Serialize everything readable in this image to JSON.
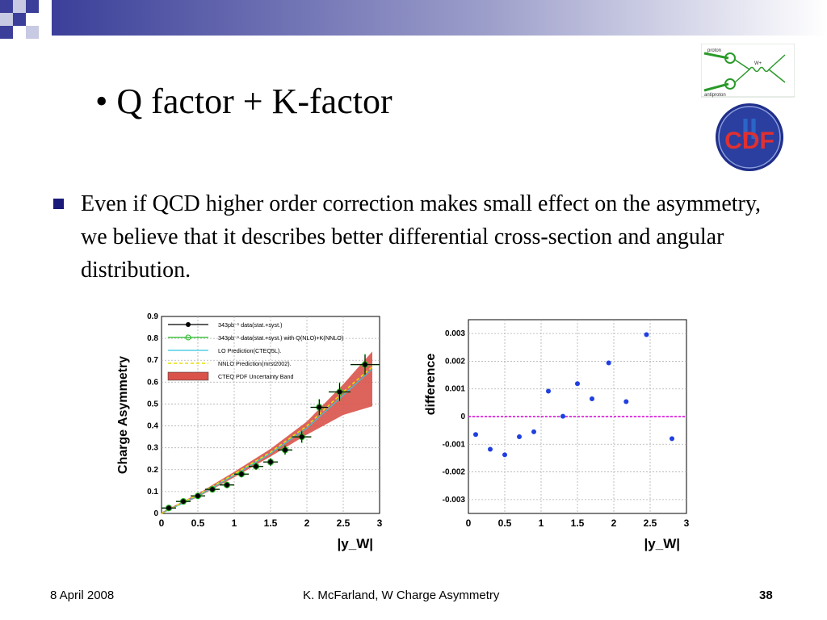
{
  "slide": {
    "title": "• Q factor + K-factor",
    "bullet": "Even if QCD higher order correction makes small effect on the asymmetry, we believe that it describes better differential cross-section and angular distribution.",
    "footer_date": "8 April 2008",
    "footer_center": "K. McFarland, W Charge Asymmetry",
    "page_number": "38",
    "logo_text": "CDF",
    "logo_roman": "II",
    "diagram_labels": [
      "proton",
      "antiproton",
      "W+"
    ],
    "accent_color": "#3b3f99",
    "bullet_color": "#1a1a7a"
  },
  "chart_data": [
    {
      "type": "scatter",
      "title": "",
      "xlabel": "|y_W|",
      "ylabel": "Charge Asymmetry",
      "xlim": [
        0,
        3
      ],
      "ylim": [
        0,
        0.9
      ],
      "xticks": [
        "0",
        "0.5",
        "1",
        "1.5",
        "2",
        "2.5",
        "3"
      ],
      "yticks": [
        "0",
        "0.1",
        "0.2",
        "0.3",
        "0.4",
        "0.5",
        "0.6",
        "0.7",
        "0.8",
        "0.9"
      ],
      "grid": true,
      "legend_position": "top-left",
      "legend": [
        {
          "label": "343pb⁻¹ data(stat.+syst.)",
          "color": "#000000",
          "style": "marker-line"
        },
        {
          "label": "343pb⁻¹ data(stat.+syst.) with Q(NLO)+K(NNLO)",
          "color": "#22bb22",
          "style": "marker-line"
        },
        {
          "label": "LO Prediction(CTEQ5L).",
          "color": "#33c6e0",
          "style": "line"
        },
        {
          "label": "NNLO Prediction(mrst2002).",
          "color": "#e6e200",
          "style": "dashed"
        },
        {
          "label": "CTEQ PDF Uncertainty Band",
          "color": "#d9534a",
          "style": "band"
        }
      ],
      "series": [
        {
          "name": "343pb⁻¹ data(stat.+syst.)",
          "color": "#000000",
          "x": [
            0.1,
            0.3,
            0.5,
            0.7,
            0.9,
            1.1,
            1.3,
            1.5,
            1.7,
            1.93,
            2.17,
            2.45,
            2.8
          ],
          "y": [
            0.025,
            0.055,
            0.08,
            0.11,
            0.13,
            0.18,
            0.215,
            0.235,
            0.29,
            0.35,
            0.485,
            0.555,
            0.68
          ],
          "xerr": [
            0.1,
            0.1,
            0.1,
            0.1,
            0.1,
            0.1,
            0.1,
            0.1,
            0.1,
            0.13,
            0.12,
            0.15,
            0.2
          ],
          "yerr": [
            0.01,
            0.01,
            0.012,
            0.012,
            0.012,
            0.014,
            0.014,
            0.016,
            0.02,
            0.025,
            0.035,
            0.04,
            0.045
          ]
        },
        {
          "name": "343pb⁻¹ data(stat.+syst.) with Q(NLO)+K(NNLO)",
          "color": "#22bb22",
          "x": [
            0.1,
            0.3,
            0.5,
            0.7,
            0.9,
            1.1,
            1.3,
            1.5,
            1.7,
            1.93,
            2.17,
            2.45,
            2.8
          ],
          "y": [
            0.025,
            0.055,
            0.08,
            0.11,
            0.13,
            0.18,
            0.215,
            0.235,
            0.29,
            0.35,
            0.485,
            0.555,
            0.68
          ],
          "xerr": [
            0.1,
            0.1,
            0.1,
            0.1,
            0.1,
            0.1,
            0.1,
            0.1,
            0.1,
            0.13,
            0.12,
            0.15,
            0.2
          ],
          "yerr": [
            0.012,
            0.012,
            0.014,
            0.014,
            0.014,
            0.016,
            0.016,
            0.018,
            0.022,
            0.028,
            0.038,
            0.043,
            0.048
          ]
        },
        {
          "name": "LO Prediction(CTEQ5L).",
          "color": "#33c6e0",
          "x": [
            0,
            0.5,
            1.0,
            1.5,
            2.0,
            2.5,
            2.9
          ],
          "y": [
            0.0,
            0.08,
            0.175,
            0.275,
            0.39,
            0.54,
            0.66
          ]
        },
        {
          "name": "NNLO Prediction(mrst2002).",
          "color": "#e6e200",
          "x": [
            0,
            0.5,
            1.0,
            1.5,
            2.0,
            2.5,
            2.9
          ],
          "y": [
            0.0,
            0.085,
            0.18,
            0.28,
            0.4,
            0.555,
            0.67
          ]
        },
        {
          "name": "CTEQ PDF Uncertainty Band",
          "color": "#d9534a",
          "x": [
            0,
            0.5,
            1.0,
            1.5,
            2.0,
            2.5,
            2.9
          ],
          "y_low": [
            0.0,
            0.075,
            0.165,
            0.26,
            0.36,
            0.45,
            0.49
          ],
          "y_high": [
            0.005,
            0.09,
            0.19,
            0.295,
            0.42,
            0.59,
            0.74
          ]
        }
      ]
    },
    {
      "type": "scatter",
      "title": "",
      "xlabel": "|y_W|",
      "ylabel": "difference",
      "xlim": [
        0,
        3
      ],
      "ylim": [
        -0.0035,
        0.0035
      ],
      "xticks": [
        "0",
        "0.5",
        "1",
        "1.5",
        "2",
        "2.5",
        "3"
      ],
      "yticks": [
        "-0.003",
        "-0.002",
        "-0.001",
        "0",
        "0.001",
        "0.002",
        "0.003"
      ],
      "grid": true,
      "reference_line": {
        "y": 0,
        "color": "#e020e0",
        "style": "dashed"
      },
      "series": [
        {
          "name": "",
          "color": "#1f3fe0",
          "x": [
            0.1,
            0.3,
            0.5,
            0.7,
            0.9,
            1.1,
            1.3,
            1.5,
            1.7,
            1.93,
            2.17,
            2.45,
            2.8
          ],
          "y": [
            -0.00065,
            -0.00118,
            -0.00138,
            -0.00073,
            -0.00055,
            0.00092,
            1e-05,
            0.00119,
            0.00064,
            0.00194,
            0.00054,
            0.00296,
            -0.0008
          ]
        }
      ]
    }
  ]
}
